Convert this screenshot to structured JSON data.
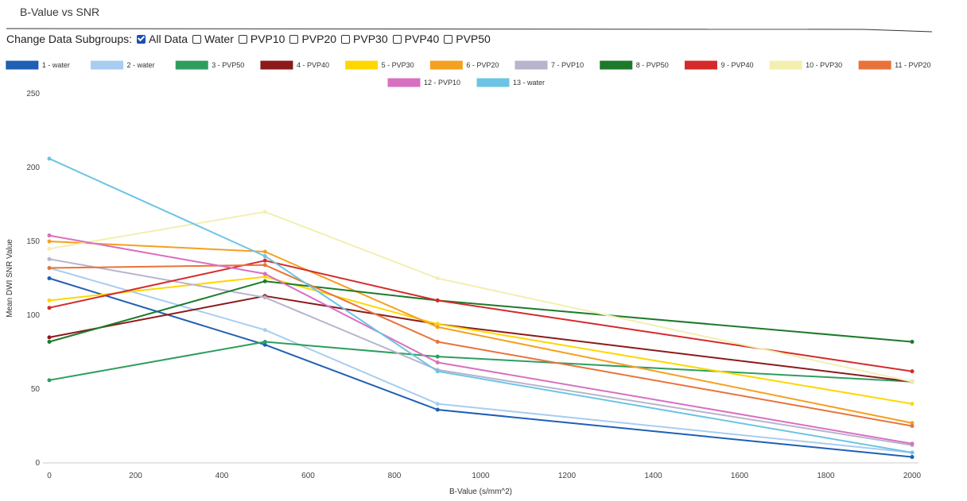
{
  "title": "B-Value vs SNR",
  "subgroups": {
    "label": "Change Data Subgroups:",
    "options": [
      {
        "label": "All Data",
        "checked": true
      },
      {
        "label": "Water",
        "checked": false
      },
      {
        "label": "PVP10",
        "checked": false
      },
      {
        "label": "PVP20",
        "checked": false
      },
      {
        "label": "PVP30",
        "checked": false
      },
      {
        "label": "PVP40",
        "checked": false
      },
      {
        "label": "PVP50",
        "checked": false
      }
    ]
  },
  "chart_data": {
    "type": "line",
    "xlabel": "B-Value (s/mm^2)",
    "ylabel": "Mean DWI SNR Value",
    "xlim": [
      0,
      2000
    ],
    "ylim": [
      0,
      250
    ],
    "xticks": [
      0,
      200,
      400,
      600,
      800,
      1000,
      1200,
      1400,
      1600,
      1800,
      2000
    ],
    "yticks": [
      0,
      50,
      100,
      150,
      200,
      250
    ],
    "ytick_labels": [
      "0",
      "50",
      "100",
      "150",
      "200",
      "250"
    ],
    "legend_position": "top",
    "grid": false,
    "x": [
      0,
      500,
      900,
      2000
    ],
    "series": [
      {
        "name": "1 - water",
        "color": "#1f5fb4",
        "values": [
          125,
          80,
          36,
          4
        ]
      },
      {
        "name": "2 - water",
        "color": "#a8cdf0",
        "values": [
          132,
          90,
          40,
          7
        ]
      },
      {
        "name": "3 - PVP50",
        "color": "#2e9e5e",
        "values": [
          56,
          82,
          72,
          55
        ]
      },
      {
        "name": "4 - PVP40",
        "color": "#8b1a1a",
        "values": [
          85,
          113,
          94,
          55
        ]
      },
      {
        "name": "5 - PVP30",
        "color": "#ffd700",
        "values": [
          110,
          126,
          94,
          40
        ]
      },
      {
        "name": "6 - PVP20",
        "color": "#f5a020",
        "values": [
          150,
          143,
          92,
          27
        ]
      },
      {
        "name": "7 - PVP10",
        "color": "#b8b4cc",
        "values": [
          138,
          112,
          63,
          12
        ]
      },
      {
        "name": "8 - PVP50",
        "color": "#1c7a2a",
        "values": [
          82,
          123,
          110,
          82
        ]
      },
      {
        "name": "9 - PVP40",
        "color": "#d42a2a",
        "values": [
          105,
          137,
          110,
          62
        ]
      },
      {
        "name": "10 - PVP30",
        "color": "#f2efb0",
        "values": [
          145,
          170,
          125,
          55
        ]
      },
      {
        "name": "11 - PVP20",
        "color": "#e8733a",
        "values": [
          132,
          134,
          82,
          25
        ]
      },
      {
        "name": "12 - PVP10",
        "color": "#d870c0",
        "values": [
          154,
          128,
          68,
          13
        ]
      },
      {
        "name": "13 - water",
        "color": "#6cc4e4",
        "values": [
          206,
          140,
          62,
          7
        ]
      }
    ]
  }
}
